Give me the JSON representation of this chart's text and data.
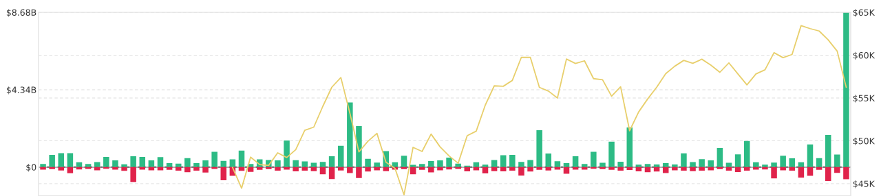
{
  "chart_data": {
    "type": "bar",
    "categories": [
      null,
      null,
      null,
      null,
      null,
      null,
      null,
      null,
      null,
      null,
      null,
      null,
      null,
      null,
      null,
      null,
      null,
      null,
      null,
      null,
      null,
      null,
      null,
      null,
      null,
      null,
      null,
      null,
      null,
      null,
      null,
      null,
      null,
      null,
      null,
      null,
      null,
      null,
      null,
      null,
      null,
      null,
      null,
      null,
      null,
      null,
      null,
      null,
      null,
      null,
      null,
      null,
      null,
      null,
      null,
      null,
      null,
      null,
      null,
      null,
      null,
      null,
      null,
      null,
      null,
      null,
      null,
      null,
      null,
      null,
      null,
      null,
      null,
      null,
      null,
      null,
      null,
      null,
      null,
      null,
      null,
      null,
      null,
      null,
      null,
      null,
      null,
      null,
      null,
      null
    ],
    "series": [
      {
        "color": "#2dbb85",
        "values": [
          0.18,
          0.69,
          0.78,
          0.78,
          0.27,
          0.18,
          0.28,
          0.57,
          0.38,
          0.16,
          0.61,
          0.57,
          0.38,
          0.56,
          0.23,
          0.2,
          0.5,
          0.23,
          0.38,
          0.86,
          0.35,
          0.44,
          0.93,
          0.18,
          0.44,
          0.4,
          0.38,
          1.49,
          0.39,
          0.32,
          0.24,
          0.29,
          0.61,
          1.2,
          3.63,
          2.3,
          0.47,
          0.25,
          0.9,
          0.27,
          0.64,
          0.13,
          0.18,
          0.34,
          0.38,
          0.53,
          0.2,
          0.08,
          0.27,
          0.14,
          0.4,
          0.67,
          0.69,
          0.29,
          0.4,
          2.07,
          0.76,
          0.33,
          0.23,
          0.61,
          0.18,
          0.86,
          0.24,
          1.43,
          0.3,
          2.22,
          0.14,
          0.18,
          0.15,
          0.23,
          0.15,
          0.77,
          0.28,
          0.45,
          0.38,
          1.07,
          0.24,
          0.72,
          1.46,
          0.27,
          0.14,
          0.25,
          0.64,
          0.49,
          0.27,
          1.27,
          0.5,
          1.8,
          0.71,
          8.68
        ]
      },
      {
        "color": "#e0234b",
        "values": [
          -0.14,
          -0.11,
          -0.19,
          -0.34,
          -0.13,
          -0.1,
          -0.18,
          -0.09,
          -0.14,
          -0.21,
          -0.84,
          -0.14,
          -0.18,
          -0.18,
          -0.15,
          -0.2,
          -0.28,
          -0.2,
          -0.3,
          -0.1,
          -0.74,
          -0.49,
          -0.21,
          -0.26,
          -0.15,
          -0.11,
          -0.2,
          -0.14,
          -0.24,
          -0.2,
          -0.23,
          -0.4,
          -0.67,
          -0.19,
          -0.33,
          -0.61,
          -0.25,
          -0.18,
          -0.23,
          -0.14,
          -0.11,
          -0.4,
          -0.15,
          -0.29,
          -0.18,
          -0.13,
          -0.1,
          -0.24,
          -0.18,
          -0.35,
          -0.23,
          -0.24,
          -0.2,
          -0.48,
          -0.25,
          -0.15,
          -0.19,
          -0.14,
          -0.37,
          -0.14,
          -0.14,
          -0.09,
          -0.11,
          -0.15,
          -0.2,
          -0.16,
          -0.24,
          -0.28,
          -0.25,
          -0.33,
          -0.18,
          -0.2,
          -0.23,
          -0.2,
          -0.18,
          -0.11,
          -0.2,
          -0.27,
          -0.2,
          -0.14,
          -0.13,
          -0.63,
          -0.18,
          -0.2,
          -0.59,
          -0.49,
          -0.15,
          -0.77,
          -0.32,
          -0.68
        ]
      },
      {
        "type": "line",
        "axis": "y2",
        "color": "#e8cf6c",
        "values": [
          null,
          null,
          null,
          null,
          null,
          null,
          null,
          null,
          null,
          null,
          null,
          null,
          null,
          null,
          null,
          null,
          null,
          null,
          null,
          null,
          null,
          46890,
          44470,
          48100,
          47230,
          47130,
          48600,
          48050,
          48970,
          51230,
          51600,
          54020,
          56260,
          57390,
          53240,
          48710,
          49950,
          50870,
          47500,
          46790,
          43700,
          49240,
          48760,
          50790,
          49290,
          48230,
          47390,
          50600,
          51130,
          54160,
          56420,
          56370,
          57050,
          59740,
          59740,
          56240,
          55810,
          55000,
          59550,
          59030,
          59340,
          57260,
          57130,
          55210,
          56310,
          51180,
          53370,
          54890,
          56260,
          57840,
          58710,
          59390,
          59050,
          59530,
          58840,
          58000,
          59100,
          57810,
          56530,
          57810,
          58290,
          60290,
          59710,
          60080,
          63450,
          63100,
          62820,
          61790,
          60470,
          56260
        ]
      }
    ],
    "ylim": [
      -1.6,
      8.68
    ],
    "yticks": [
      {
        "value": 0,
        "label": "$0"
      },
      {
        "value": 4.34,
        "label": "$4.34B"
      },
      {
        "value": 8.68,
        "label": "$8.68B"
      }
    ],
    "y2lim": [
      43600,
      65000
    ],
    "y2ticks": [
      {
        "value": 45000,
        "label": "$45K"
      },
      {
        "value": 50000,
        "label": "$50K"
      },
      {
        "value": 55000,
        "label": "$55K"
      },
      {
        "value": 60000,
        "label": "$60K"
      },
      {
        "value": 65000,
        "label": "$65K"
      }
    ],
    "ref_lines": [
      {
        "axis": "y",
        "value": 0,
        "color": "#000000"
      }
    ],
    "stacked": true,
    "grid": "y",
    "marker": "none",
    "line_style": "solid"
  }
}
